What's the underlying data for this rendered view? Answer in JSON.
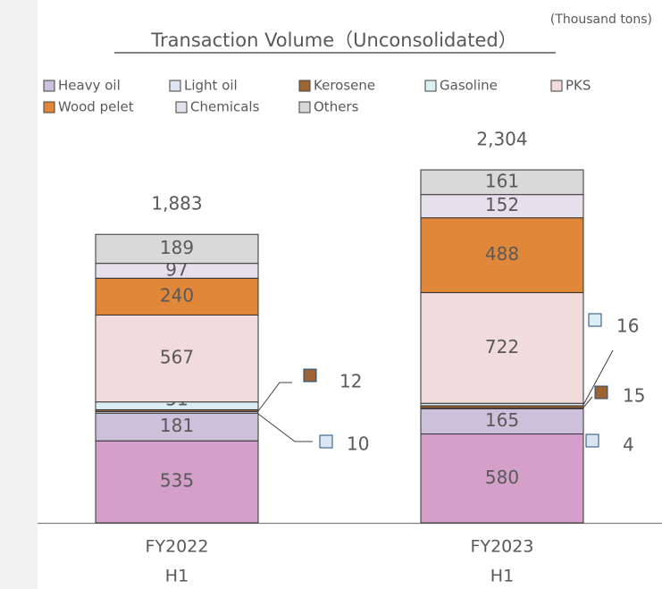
{
  "chart_data": {
    "type": "stacked_bar",
    "title": "Transaction Volume（Unconsolidated）",
    "unit": "(Thousand tons)",
    "categories": [
      [
        "FY2022",
        "H1"
      ],
      [
        "FY2023",
        "H1"
      ]
    ],
    "series": [
      {
        "color": "#d4a0ca",
        "values": [
          535,
          580
        ]
      },
      {
        "name": "Heavy oil",
        "color": "#ccc0da",
        "values": [
          181,
          165
        ]
      },
      {
        "name": "Light oil",
        "color": "#dce6f2",
        "values": [
          10,
          4
        ]
      },
      {
        "name": "Kerosene",
        "color": "#9c6433",
        "values": [
          12,
          15
        ]
      },
      {
        "name": "Gasoline",
        "color": "#daeef3",
        "values": [
          51,
          16
        ]
      },
      {
        "name": "PKS",
        "color": "#f2dcdb",
        "values": [
          567,
          722
        ]
      },
      {
        "name": "Wood pelet",
        "color": "#e0873a",
        "values": [
          240,
          488
        ]
      },
      {
        "name": "Chemicals",
        "color": "#e6e0ec",
        "values": [
          97,
          152
        ]
      },
      {
        "name": "Others",
        "color": "#d9d9d9",
        "values": [
          189,
          161
        ]
      }
    ],
    "totals": [
      1883,
      2304
    ],
    "total_labels": [
      "1,883",
      "2,304"
    ],
    "ylim": [
      0,
      3000
    ]
  }
}
